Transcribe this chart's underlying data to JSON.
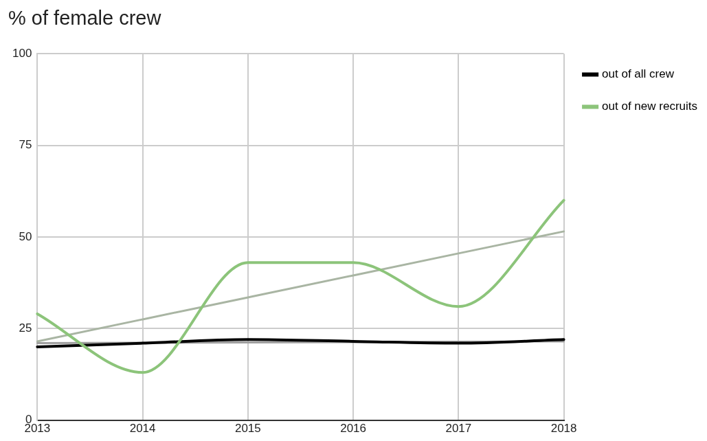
{
  "chart_data": {
    "type": "line",
    "title": "% of female crew",
    "x": [
      2013,
      2014,
      2015,
      2016,
      2017,
      2018
    ],
    "series": [
      {
        "name": "out of all crew",
        "color": "#000000",
        "values": [
          20,
          21,
          22,
          21.5,
          21,
          22
        ]
      },
      {
        "name": "out of new recruits",
        "color": "#8cc47a",
        "values": [
          29,
          13,
          43,
          43,
          31,
          60
        ]
      },
      {
        "type": "line",
        "color": "#a0a0a0",
        "values": [
          21,
          21.1,
          21.2,
          21.3,
          21.4,
          21.5
        ]
      },
      {
        "type": "line",
        "color": "#a9b5a3",
        "values": [
          21.5,
          27.5,
          33.5,
          39.5,
          45.5,
          51.5
        ]
      }
    ],
    "xlim": [
      2013,
      2018
    ],
    "xticks": [
      2013,
      2014,
      2015,
      2016,
      2017,
      2018
    ],
    "ylim": [
      0,
      100
    ],
    "yticks": [
      0,
      25,
      50,
      75,
      100
    ],
    "grid": true,
    "legend": "top right",
    "marker": "none",
    "line_style": "solid"
  }
}
